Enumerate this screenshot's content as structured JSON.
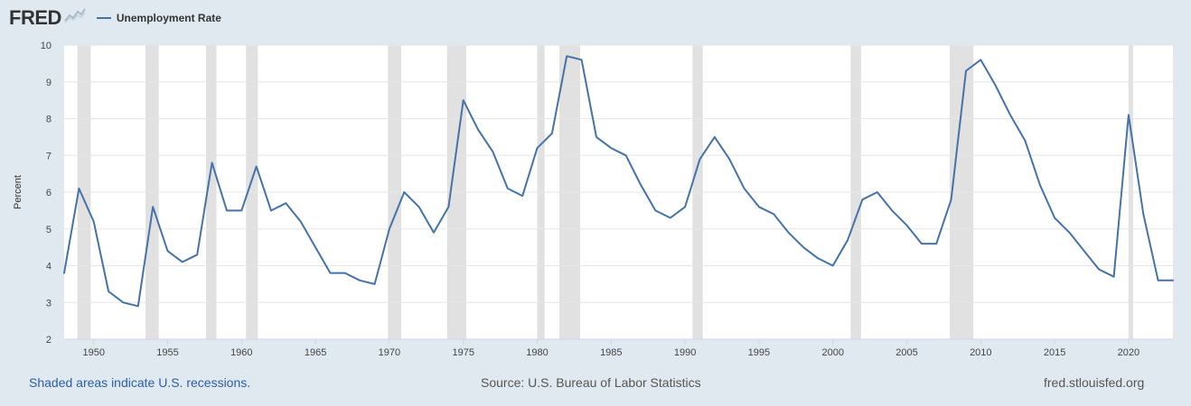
{
  "header": {
    "logo": "FRED",
    "legend_label": "Unemployment Rate"
  },
  "footer": {
    "recession_note": "Shaded areas indicate U.S. recessions.",
    "source": "Source: U.S. Bureau of Labor Statistics",
    "site": "fred.stlouisfed.org"
  },
  "colors": {
    "background": "#e1e9f0",
    "plot_background": "#ffffff",
    "line": "#4572a7",
    "recession": "#e1e1e1",
    "grid": "#e6e6e6"
  },
  "chart_data": {
    "type": "line",
    "title": "",
    "xlabel": "",
    "ylabel": "Percent",
    "xlim": [
      1948,
      2023
    ],
    "ylim": [
      2,
      10
    ],
    "grid": true,
    "legend": "top-left",
    "x_ticks": [
      1950,
      1955,
      1960,
      1965,
      1970,
      1975,
      1980,
      1985,
      1990,
      1995,
      2000,
      2005,
      2010,
      2015,
      2020
    ],
    "y_ticks": [
      2,
      3,
      4,
      5,
      6,
      7,
      8,
      9,
      10
    ],
    "recessions": [
      [
        1948.9,
        1949.8
      ],
      [
        1953.5,
        1954.4
      ],
      [
        1957.6,
        1958.3
      ],
      [
        1960.3,
        1961.1
      ],
      [
        1969.9,
        1970.8
      ],
      [
        1973.9,
        1975.2
      ],
      [
        1980.0,
        1980.5
      ],
      [
        1981.5,
        1982.9
      ],
      [
        1990.5,
        1991.2
      ],
      [
        2001.2,
        2001.9
      ],
      [
        2007.9,
        2009.5
      ],
      [
        2020.0,
        2020.3
      ]
    ],
    "series": [
      {
        "name": "Unemployment Rate",
        "x": [
          1948,
          1949,
          1950,
          1951,
          1952,
          1953,
          1954,
          1955,
          1956,
          1957,
          1958,
          1959,
          1960,
          1961,
          1962,
          1963,
          1964,
          1965,
          1966,
          1967,
          1968,
          1969,
          1970,
          1971,
          1972,
          1973,
          1974,
          1975,
          1976,
          1977,
          1978,
          1979,
          1980,
          1981,
          1982,
          1983,
          1984,
          1985,
          1986,
          1987,
          1988,
          1989,
          1990,
          1991,
          1992,
          1993,
          1994,
          1995,
          1996,
          1997,
          1998,
          1999,
          2000,
          2001,
          2002,
          2003,
          2004,
          2005,
          2006,
          2007,
          2008,
          2009,
          2010,
          2011,
          2012,
          2013,
          2014,
          2015,
          2016,
          2017,
          2018,
          2019,
          2020,
          2021,
          2022,
          2023
        ],
        "values": [
          3.8,
          6.1,
          5.2,
          3.3,
          3.0,
          2.9,
          5.6,
          4.4,
          4.1,
          4.3,
          6.8,
          5.5,
          5.5,
          6.7,
          5.5,
          5.7,
          5.2,
          4.5,
          3.8,
          3.8,
          3.6,
          3.5,
          5.0,
          6.0,
          5.6,
          4.9,
          5.6,
          8.5,
          7.7,
          7.1,
          6.1,
          5.9,
          7.2,
          7.6,
          9.7,
          9.6,
          7.5,
          7.2,
          7.0,
          6.2,
          5.5,
          5.3,
          5.6,
          6.9,
          7.5,
          6.9,
          6.1,
          5.6,
          5.4,
          4.9,
          4.5,
          4.2,
          4.0,
          4.7,
          5.8,
          6.0,
          5.5,
          5.1,
          4.6,
          4.6,
          5.8,
          9.3,
          9.6,
          8.9,
          8.1,
          7.4,
          6.2,
          5.3,
          4.9,
          4.4,
          3.9,
          3.7,
          8.1,
          5.4,
          3.6,
          3.6
        ]
      }
    ]
  }
}
